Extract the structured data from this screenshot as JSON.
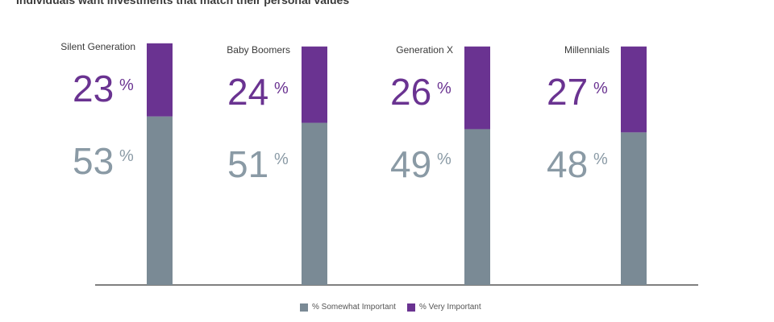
{
  "title": "Individuals want investments that match their personal values",
  "colors": {
    "somewhat": "#7a8a95",
    "very": "#6a3391",
    "somewhat_text": "#8a9aa5",
    "very_text": "#6a3391",
    "axis": "#333333"
  },
  "chart_data": {
    "type": "bar",
    "stacked": true,
    "categories": [
      "Silent Generation",
      "Baby Boomers",
      "Generation X",
      "Millennials"
    ],
    "series": [
      {
        "name": "% Somewhat Important",
        "values": [
          53,
          51,
          49,
          48
        ]
      },
      {
        "name": "% Very Important",
        "values": [
          23,
          24,
          26,
          27
        ]
      }
    ],
    "ylim": [
      0,
      80
    ],
    "grid": false,
    "legend": "bottom-center"
  },
  "legend": {
    "somewhat_label": "% Somewhat Important",
    "very_label": "% Very Important"
  }
}
